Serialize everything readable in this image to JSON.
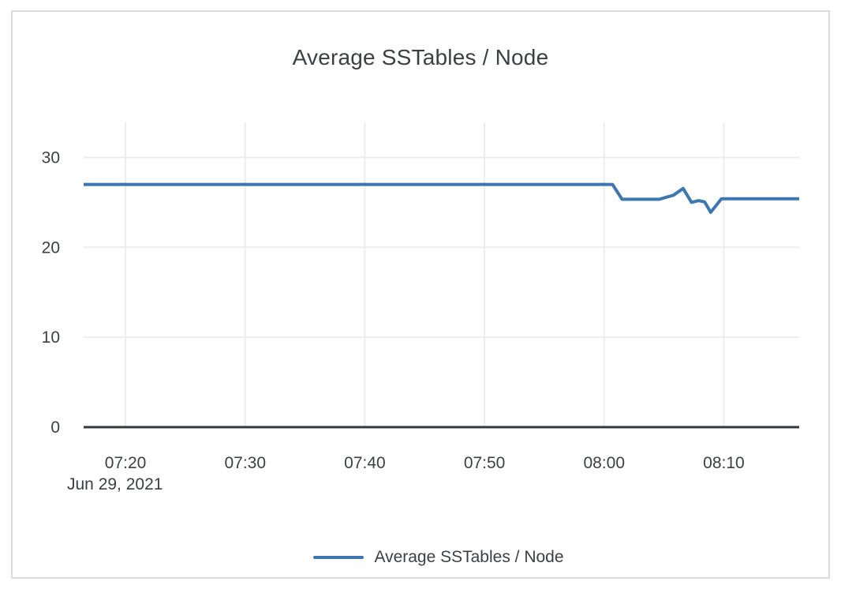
{
  "chart": {
    "title": "Average SSTables / Node",
    "legend": {
      "label": "Average SSTables / Node"
    }
  },
  "colors": {
    "line": "#3e76b0",
    "grid": "#ebedee",
    "axis": "#35393c",
    "text": "#3c4043",
    "frame_border": "#dcdcdc"
  },
  "chart_data": {
    "type": "line",
    "title": "Average SSTables / Node",
    "xlabel": "",
    "ylabel": "",
    "x_unit": "minutes after 07:00, Jun 29, 2021",
    "date_label": "Jun 29, 2021",
    "x_range": [
      16.5,
      76.3
    ],
    "y_range": [
      0,
      33.9
    ],
    "grid": true,
    "legend_position": "bottom",
    "x_ticks": [
      {
        "value": 20,
        "label": "07:20"
      },
      {
        "value": 30,
        "label": "07:30"
      },
      {
        "value": 40,
        "label": "07:40"
      },
      {
        "value": 50,
        "label": "07:50"
      },
      {
        "value": 60,
        "label": "08:00"
      },
      {
        "value": 70,
        "label": "08:10"
      }
    ],
    "y_ticks": [
      {
        "value": 0,
        "label": "0"
      },
      {
        "value": 10,
        "label": "10"
      },
      {
        "value": 20,
        "label": "20"
      },
      {
        "value": 30,
        "label": "30"
      }
    ],
    "series": [
      {
        "name": "Average SSTables / Node",
        "color": "#3e76b0",
        "points": [
          [
            16.5,
            27.0
          ],
          [
            60.7,
            27.0
          ],
          [
            61.5,
            25.35
          ],
          [
            64.6,
            25.35
          ],
          [
            65.8,
            25.8
          ],
          [
            66.6,
            26.55
          ],
          [
            67.3,
            25.0
          ],
          [
            67.9,
            25.2
          ],
          [
            68.4,
            25.05
          ],
          [
            68.9,
            23.9
          ],
          [
            69.8,
            25.4
          ],
          [
            76.3,
            25.4
          ]
        ]
      }
    ]
  }
}
